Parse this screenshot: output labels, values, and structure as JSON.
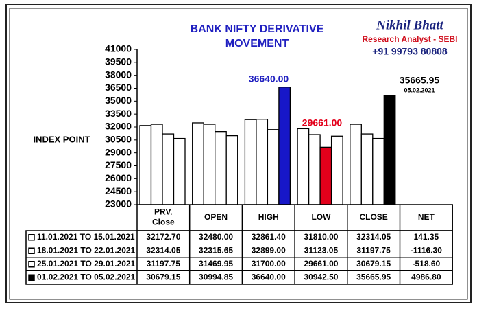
{
  "chart_data": {
    "type": "bar",
    "title": "BANK NIFTY DERIVATIVE MOVEMENT",
    "y_label": "INDEX POINT",
    "branding": {
      "name": "Nikhil Bhatt",
      "role": "Research Analyst - SEBI",
      "phone": "+91 99793 80808"
    },
    "categories": [
      "PRV. Close",
      "OPEN",
      "HIGH",
      "LOW",
      "CLOSE"
    ],
    "net_header": "NET",
    "ylim": [
      23000,
      41000
    ],
    "yticks": [
      23000,
      24500,
      26000,
      27500,
      29000,
      30500,
      32000,
      33500,
      35000,
      36500,
      38000,
      39500,
      41000
    ],
    "series": [
      {
        "name": "11.01.2021 TO 15.01.2021",
        "colors": [
          "#ffffff",
          "#ffffff",
          "#ffffff",
          "#ffffff",
          "#ffffff"
        ],
        "values": [
          32172.7,
          32480,
          32861.4,
          31810,
          32314.05
        ],
        "value_labels": [
          "32172.70",
          "32480.00",
          "32861.40",
          "31810.00",
          "32314.05"
        ],
        "net": 141.35,
        "net_label": "141.35"
      },
      {
        "name": "18.01.2021 TO 22.01.2021",
        "colors": [
          "#ffffff",
          "#ffffff",
          "#ffffff",
          "#ffffff",
          "#ffffff"
        ],
        "values": [
          32314.05,
          32315.65,
          32899,
          31123.05,
          31197.75
        ],
        "value_labels": [
          "32314.05",
          "32315.65",
          "32899.00",
          "31123.05",
          "31197.75"
        ],
        "net": -1116.3,
        "net_label": "-1116.30"
      },
      {
        "name": "25.01.2021 TO 29.01.2021",
        "colors": [
          "#ffffff",
          "#ffffff",
          "#ffffff",
          "#e3001b",
          "#ffffff"
        ],
        "values": [
          31197.75,
          31469.95,
          31700,
          29661,
          30679.15
        ],
        "value_labels": [
          "31197.75",
          "31469.95",
          "31700.00",
          "29661.00",
          "30679.15"
        ],
        "net": -518.6,
        "net_label": "-518.60"
      },
      {
        "name": "01.02.2021 TO 05.02.2021",
        "colors": [
          "#ffffff",
          "#ffffff",
          "#1717c8",
          "#ffffff",
          "#000000"
        ],
        "values": [
          30679.15,
          30994.85,
          36640,
          30942.5,
          35665.95
        ],
        "value_labels": [
          "30679.15",
          "30994.85",
          "36640.00",
          "30942.50",
          "35665.95"
        ],
        "net": 4986.8,
        "net_label": "4986.80"
      }
    ],
    "annotations": [
      {
        "text": "36640.00",
        "color": "#1f1fc0"
      },
      {
        "text": "29661.00",
        "color": "#e3001b"
      },
      {
        "text": "35665.95",
        "color": "#000000"
      },
      {
        "text": "05.02.2021",
        "color": "#000000"
      }
    ]
  }
}
